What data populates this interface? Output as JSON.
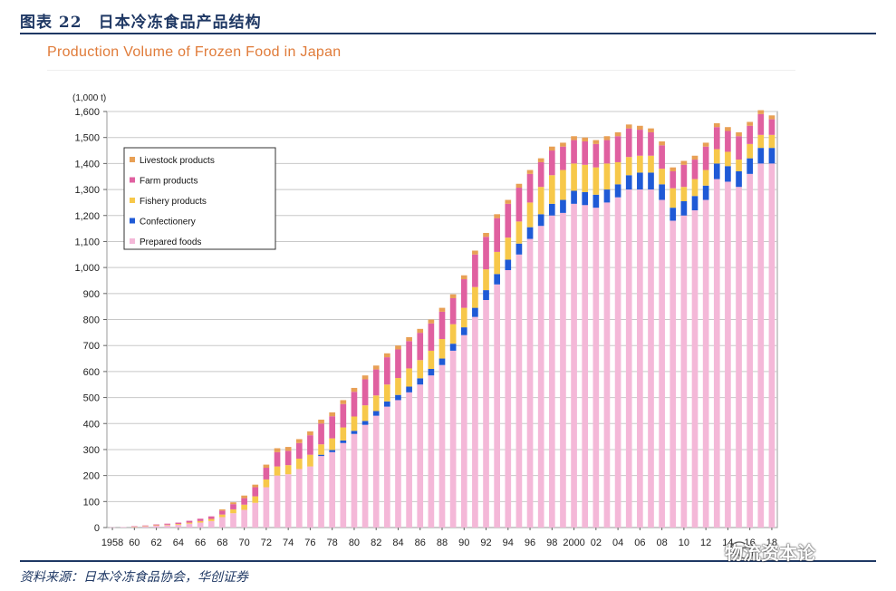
{
  "figure": {
    "label": "图表 22　日本冷冻食品产品结构",
    "source": "资料来源：日本冷冻食品协会，华创证券",
    "watermark": "物流资本论"
  },
  "chart_data": {
    "type": "bar",
    "stacked": true,
    "title": "Production Volume of Frozen Food in Japan",
    "unit_label": "(1,000 t)",
    "xlabel": "",
    "ylabel": "(1,000 t)",
    "ylim": [
      0,
      1600
    ],
    "yticks": [
      0,
      100,
      200,
      300,
      400,
      500,
      600,
      700,
      800,
      900,
      1000,
      1100,
      1200,
      1300,
      1400,
      1500,
      1600
    ],
    "ytick_labels": [
      "0",
      "100",
      "200",
      "300",
      "400",
      "500",
      "600",
      "700",
      "800",
      "900",
      "1,000",
      "1,100",
      "1,200",
      "1,300",
      "1,400",
      "1,500",
      "1,600"
    ],
    "grid": true,
    "legend_position": "top-left",
    "categories": [
      "1958",
      "1959",
      "1960",
      "1961",
      "1962",
      "1963",
      "1964",
      "1965",
      "1966",
      "1967",
      "1968",
      "1969",
      "1970",
      "1971",
      "1972",
      "1973",
      "1974",
      "1975",
      "1976",
      "1977",
      "1978",
      "1979",
      "1980",
      "1981",
      "1982",
      "1983",
      "1984",
      "1985",
      "1986",
      "1987",
      "1988",
      "1989",
      "1990",
      "1991",
      "1992",
      "1993",
      "1994",
      "1995",
      "1996",
      "1997",
      "1998",
      "1999",
      "2000",
      "2001",
      "2002",
      "2003",
      "2004",
      "2005",
      "2006",
      "2007",
      "2008",
      "2009",
      "2010",
      "2011",
      "2012",
      "2013",
      "2014",
      "2015",
      "2016",
      "2017",
      "2018"
    ],
    "tick_labels": [
      "1958",
      "60",
      "62",
      "64",
      "66",
      "68",
      "70",
      "72",
      "74",
      "76",
      "78",
      "80",
      "82",
      "84",
      "86",
      "88",
      "90",
      "92",
      "94",
      "96",
      "98",
      "2000",
      "02",
      "04",
      "06",
      "08",
      "10",
      "12",
      "14",
      "16",
      "18"
    ],
    "series": [
      {
        "name": "Prepared foods",
        "color": "#f4b8d8",
        "values": [
          1,
          2,
          3,
          5,
          7,
          9,
          11,
          15,
          19,
          25,
          40,
          55,
          68,
          95,
          155,
          200,
          205,
          225,
          235,
          275,
          290,
          325,
          360,
          395,
          430,
          465,
          490,
          520,
          550,
          585,
          625,
          680,
          740,
          810,
          875,
          935,
          990,
          1050,
          1110,
          1160,
          1200,
          1210,
          1245,
          1240,
          1230,
          1250,
          1270,
          1300,
          1300,
          1300,
          1260,
          1180,
          1200,
          1220,
          1260,
          1340,
          1330,
          1310,
          1360,
          1400,
          1400
        ]
      },
      {
        "name": "Confectionery",
        "color": "#1f5ad6",
        "values": [
          0,
          0,
          0,
          0,
          0,
          0,
          0,
          0,
          0,
          0,
          0,
          0,
          0,
          0,
          0,
          0,
          0,
          0,
          0,
          5,
          8,
          10,
          12,
          15,
          18,
          20,
          20,
          22,
          24,
          25,
          25,
          27,
          30,
          35,
          38,
          40,
          40,
          42,
          45,
          45,
          45,
          50,
          50,
          50,
          50,
          50,
          50,
          55,
          65,
          65,
          60,
          50,
          55,
          55,
          55,
          60,
          60,
          60,
          60,
          60,
          60
        ]
      },
      {
        "name": "Fishery products",
        "color": "#f7c84a",
        "values": [
          0,
          0,
          1,
          1,
          2,
          2,
          3,
          4,
          6,
          8,
          10,
          15,
          20,
          25,
          30,
          35,
          35,
          40,
          45,
          40,
          45,
          50,
          55,
          60,
          60,
          65,
          65,
          70,
          70,
          70,
          75,
          75,
          75,
          80,
          80,
          85,
          85,
          85,
          95,
          105,
          110,
          115,
          105,
          105,
          105,
          100,
          85,
          70,
          65,
          65,
          60,
          75,
          55,
          65,
          60,
          55,
          55,
          45,
          55,
          50,
          50
        ]
      },
      {
        "name": "Farm products",
        "color": "#e060a0",
        "values": [
          0,
          0,
          1,
          2,
          3,
          4,
          5,
          7,
          9,
          10,
          15,
          20,
          25,
          35,
          45,
          55,
          55,
          60,
          75,
          80,
          85,
          90,
          95,
          100,
          100,
          105,
          110,
          105,
          105,
          105,
          105,
          100,
          110,
          125,
          125,
          130,
          130,
          130,
          110,
          95,
          95,
          90,
          90,
          90,
          90,
          90,
          100,
          110,
          100,
          90,
          90,
          65,
          85,
          75,
          90,
          85,
          80,
          90,
          70,
          80,
          60
        ]
      },
      {
        "name": "Livestock products",
        "color": "#e8a055",
        "values": [
          0,
          0,
          0,
          0,
          0,
          0,
          0,
          0,
          0,
          0,
          5,
          7,
          10,
          10,
          12,
          15,
          15,
          15,
          15,
          15,
          15,
          15,
          15,
          15,
          15,
          15,
          15,
          15,
          15,
          15,
          15,
          15,
          15,
          15,
          15,
          15,
          15,
          15,
          15,
          15,
          15,
          15,
          15,
          15,
          15,
          15,
          15,
          15,
          15,
          15,
          15,
          15,
          15,
          15,
          15,
          15,
          15,
          15,
          15,
          15,
          15
        ]
      }
    ],
    "legend_order": [
      "Livestock products",
      "Farm products",
      "Fishery products",
      "Confectionery",
      "Prepared foods"
    ]
  }
}
